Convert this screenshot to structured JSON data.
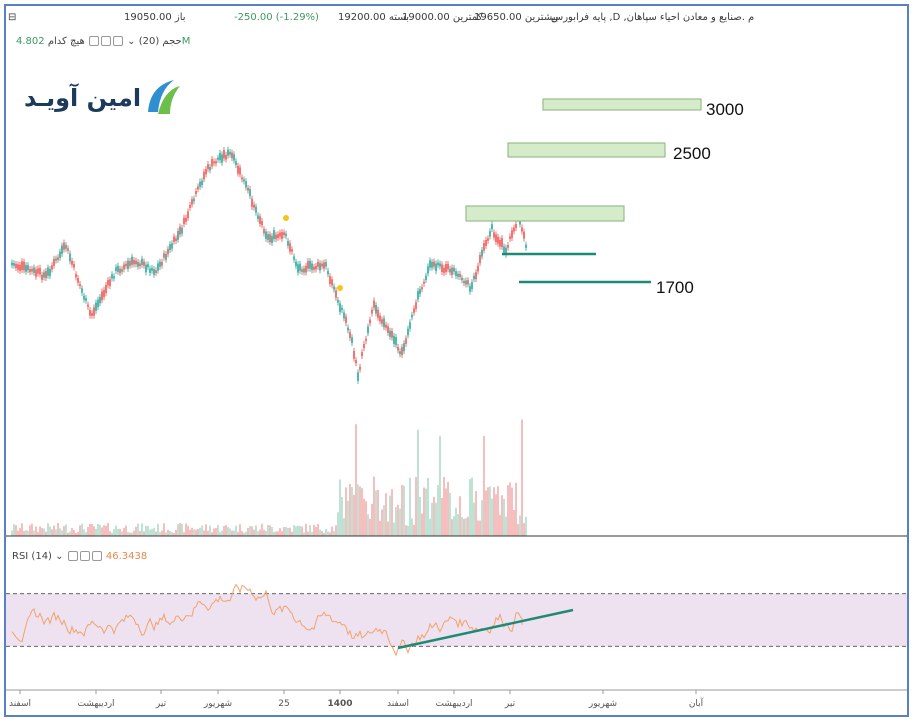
{
  "header": {
    "open": "باز 19050.00",
    "high": "بیشترین 19650.00",
    "low": "کمترین 19000.00",
    "close": "بسته 19200.00",
    "change": "-250.00 (-1.29%)",
    "symbol": "پایه فرابورس ,D ,م .صنایع و معادن احیاء سپاهان",
    "volume_label": "حجم (20)",
    "volume_sub": "هیچ کدام",
    "volume_value": "4.802M",
    "rsi_label": "RSI (14)",
    "rsi_value": "46.3438"
  },
  "logo": {
    "text": "امین آویـد"
  },
  "colors": {
    "up": "#26a69a",
    "down": "#ef5350",
    "vol_up": "#b7dfcf",
    "vol_down": "#f4b7b8",
    "rsi_line": "#f0a36b",
    "rsi_band": "#eee2f1",
    "trendline": "#1e8a76",
    "box_fill": "#d4ecc9",
    "box_stroke": "#8ab27d",
    "marker": "#f5c518"
  },
  "chart_data": {
    "type": "candlestick",
    "x_tick_labels": [
      "اسفند",
      "اردیبهشت",
      "تیر",
      "شهریور",
      "25",
      "1400",
      "اسفند",
      "اردیبهشت",
      "تیر",
      "شهریور",
      "آبان"
    ],
    "annotations": [
      {
        "type": "resistance_zone",
        "label": "3000"
      },
      {
        "type": "resistance_zone",
        "label": "2500"
      },
      {
        "type": "resistance_zone",
        "label": ""
      },
      {
        "type": "support_line",
        "label": ""
      },
      {
        "type": "support_line",
        "label": "1700"
      }
    ],
    "rsi": {
      "upper_band": 70,
      "lower_band": 30,
      "current": 46.3438
    }
  }
}
